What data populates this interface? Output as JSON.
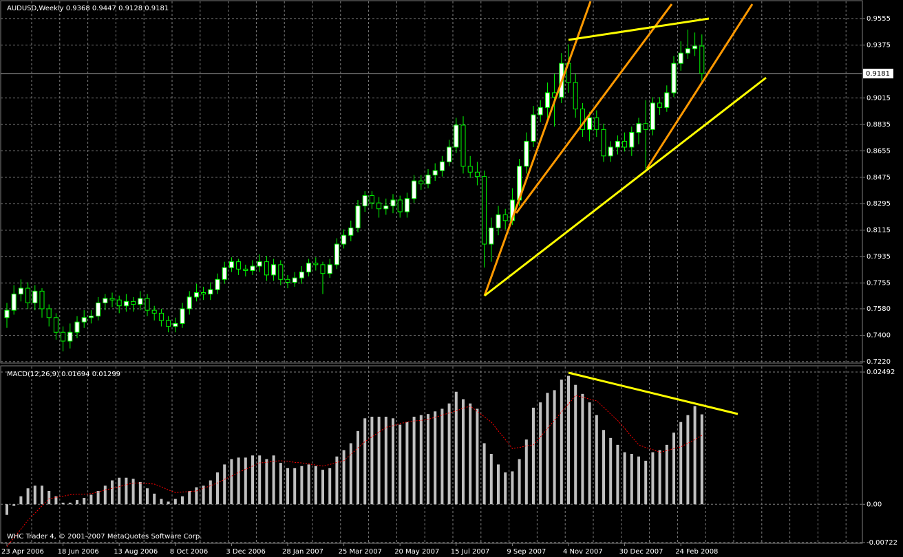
{
  "chart_data": [
    {
      "type": "candlestick",
      "title": "AUDUSD,Weekly",
      "categories": [
        "23 Apr 2006",
        null,
        null,
        null,
        null,
        null,
        null,
        null,
        "18 Jun 2006",
        null,
        null,
        null,
        null,
        null,
        null,
        null,
        "13 Aug 2006",
        null,
        null,
        null,
        null,
        null,
        null,
        null,
        "8 Oct 2006",
        null,
        null,
        null,
        null,
        null,
        null,
        null,
        "3 Dec 2006",
        null,
        null,
        null,
        null,
        null,
        null,
        null,
        "28 Jan 2007",
        null,
        null,
        null,
        null,
        null,
        null,
        null,
        "25 Mar 2007",
        null,
        null,
        null,
        null,
        null,
        null,
        null,
        "20 May 2007",
        null,
        null,
        null,
        null,
        null,
        null,
        null,
        "15 Jul 2007",
        null,
        null,
        null,
        null,
        null,
        null,
        null,
        "9 Sep 2007",
        null,
        null,
        null,
        null,
        null,
        null,
        null,
        "4 Nov 2007",
        null,
        null,
        null,
        null,
        null,
        null,
        null,
        "30 Dec 2007",
        null,
        null,
        null,
        null,
        null,
        null,
        null,
        "24 Feb 2008",
        null,
        null,
        null
      ],
      "open": [
        0.752,
        0.757,
        0.768,
        0.772,
        0.762,
        0.77,
        0.758,
        0.752,
        0.742,
        0.736,
        0.742,
        0.749,
        0.752,
        0.753,
        0.762,
        0.765,
        0.764,
        0.76,
        0.763,
        0.761,
        0.765,
        0.757,
        0.755,
        0.75,
        0.746,
        0.748,
        0.758,
        0.766,
        0.769,
        0.768,
        0.771,
        0.778,
        0.786,
        0.79,
        0.785,
        0.784,
        0.787,
        0.79,
        0.781,
        0.788,
        0.778,
        0.776,
        0.779,
        0.783,
        0.789,
        0.788,
        0.782,
        0.788,
        0.802,
        0.808,
        0.813,
        0.828,
        0.835,
        0.83,
        0.826,
        0.828,
        0.832,
        0.824,
        0.833,
        0.845,
        0.843,
        0.849,
        0.852,
        0.858,
        0.868,
        0.883,
        0.855,
        0.851,
        0.848,
        0.802,
        0.813,
        0.822,
        0.818,
        0.832,
        0.855,
        0.872,
        0.89,
        0.895,
        0.905,
        0.902,
        0.925,
        0.912,
        0.894,
        0.88,
        0.888,
        0.88,
        0.862,
        0.868,
        0.872,
        0.868,
        0.878,
        0.884,
        0.88,
        0.898,
        0.895,
        0.905,
        0.925,
        0.932,
        0.935,
        0.9368
      ],
      "high": [
        0.762,
        0.774,
        0.778,
        0.776,
        0.774,
        0.772,
        0.761,
        0.755,
        0.746,
        0.748,
        0.753,
        0.757,
        0.757,
        0.766,
        0.768,
        0.769,
        0.767,
        0.768,
        0.766,
        0.77,
        0.768,
        0.76,
        0.758,
        0.753,
        0.752,
        0.762,
        0.77,
        0.775,
        0.773,
        0.776,
        0.782,
        0.79,
        0.793,
        0.792,
        0.788,
        0.791,
        0.795,
        0.794,
        0.792,
        0.791,
        0.781,
        0.783,
        0.787,
        0.792,
        0.793,
        0.79,
        0.792,
        0.806,
        0.812,
        0.818,
        0.832,
        0.838,
        0.838,
        0.834,
        0.833,
        0.836,
        0.835,
        0.837,
        0.849,
        0.849,
        0.853,
        0.857,
        0.862,
        0.873,
        0.888,
        0.889,
        0.862,
        0.858,
        0.852,
        0.82,
        0.828,
        0.826,
        0.84,
        0.86,
        0.878,
        0.896,
        0.9,
        0.912,
        0.918,
        0.932,
        0.938,
        0.918,
        0.898,
        0.892,
        0.893,
        0.884,
        0.872,
        0.876,
        0.878,
        0.882,
        0.888,
        0.9,
        0.902,
        0.902,
        0.91,
        0.93,
        0.94,
        0.948,
        0.946,
        0.9447
      ],
      "low": [
        0.745,
        0.754,
        0.763,
        0.758,
        0.757,
        0.752,
        0.746,
        0.737,
        0.729,
        0.731,
        0.738,
        0.745,
        0.748,
        0.75,
        0.757,
        0.759,
        0.755,
        0.756,
        0.756,
        0.757,
        0.753,
        0.75,
        0.746,
        0.742,
        0.742,
        0.745,
        0.754,
        0.763,
        0.764,
        0.764,
        0.768,
        0.775,
        0.783,
        0.781,
        0.78,
        0.781,
        0.783,
        0.777,
        0.777,
        0.774,
        0.772,
        0.773,
        0.775,
        0.78,
        0.784,
        0.768,
        0.779,
        0.785,
        0.799,
        0.804,
        0.81,
        0.824,
        0.826,
        0.82,
        0.822,
        0.823,
        0.82,
        0.82,
        0.83,
        0.839,
        0.84,
        0.845,
        0.848,
        0.855,
        0.864,
        0.85,
        0.847,
        0.842,
        0.786,
        0.79,
        0.808,
        0.812,
        0.815,
        0.828,
        0.85,
        0.868,
        0.885,
        0.888,
        0.882,
        0.898,
        0.905,
        0.888,
        0.875,
        0.872,
        0.875,
        0.858,
        0.858,
        0.863,
        0.865,
        0.862,
        0.87,
        0.852,
        0.876,
        0.89,
        0.892,
        0.902,
        0.92,
        0.928,
        0.93,
        0.9128
      ],
      "close": [
        0.757,
        0.768,
        0.772,
        0.762,
        0.77,
        0.758,
        0.752,
        0.742,
        0.736,
        0.742,
        0.749,
        0.752,
        0.753,
        0.762,
        0.765,
        0.764,
        0.76,
        0.763,
        0.761,
        0.765,
        0.757,
        0.755,
        0.75,
        0.746,
        0.748,
        0.758,
        0.766,
        0.769,
        0.768,
        0.771,
        0.778,
        0.786,
        0.79,
        0.785,
        0.784,
        0.787,
        0.79,
        0.781,
        0.788,
        0.778,
        0.776,
        0.779,
        0.783,
        0.789,
        0.788,
        0.782,
        0.788,
        0.802,
        0.808,
        0.813,
        0.828,
        0.835,
        0.83,
        0.826,
        0.828,
        0.832,
        0.824,
        0.833,
        0.845,
        0.843,
        0.849,
        0.852,
        0.858,
        0.868,
        0.883,
        0.855,
        0.851,
        0.848,
        0.802,
        0.813,
        0.822,
        0.818,
        0.832,
        0.855,
        0.872,
        0.89,
        0.895,
        0.905,
        0.902,
        0.925,
        0.912,
        0.894,
        0.88,
        0.888,
        0.88,
        0.862,
        0.868,
        0.872,
        0.868,
        0.878,
        0.884,
        0.88,
        0.898,
        0.895,
        0.905,
        0.925,
        0.932,
        0.935,
        0.9368,
        0.9181
      ],
      "ylim": [
        0.7215,
        0.9672
      ],
      "yticks": [
        0.9555,
        0.9375,
        0.9015,
        0.8835,
        0.8655,
        0.8475,
        0.8295,
        0.8115,
        0.7935,
        0.7755,
        {
          "value": 0.758,
          "label": "0.7580"
        },
        {
          "value": 0.74,
          "label": "0.7400"
        },
        {
          "value": 0.722,
          "label": "0.7220"
        }
      ],
      "grid": true,
      "colors": {
        "up": "#ffffff",
        "down": "#000000",
        "wick": "#00ff00"
      }
    },
    {
      "type": "macd",
      "title": "MACD(12,26,9)",
      "histogram": [
        -0.002,
        -0.0003,
        0.0015,
        0.003,
        0.0035,
        0.0035,
        0.0025,
        0.0015,
        0.0003,
        0.0003,
        0.0008,
        0.0012,
        0.0018,
        0.0025,
        0.0035,
        0.0045,
        0.005,
        0.005,
        0.0048,
        0.0042,
        0.003,
        0.002,
        0.001,
        0.0005,
        0.001,
        0.0015,
        0.0025,
        0.0032,
        0.0035,
        0.0045,
        0.006,
        0.0075,
        0.0085,
        0.0088,
        0.0088,
        0.0092,
        0.0092,
        0.0085,
        0.0092,
        0.0078,
        0.0068,
        0.0068,
        0.0072,
        0.0075,
        0.0072,
        0.0065,
        0.0068,
        0.009,
        0.0102,
        0.0115,
        0.0138,
        0.0162,
        0.0165,
        0.0165,
        0.0165,
        0.0162,
        0.015,
        0.0155,
        0.0165,
        0.0168,
        0.017,
        0.0175,
        0.018,
        0.019,
        0.0212,
        0.0198,
        0.019,
        0.018,
        0.0115,
        0.0095,
        0.0075,
        0.006,
        0.0062,
        0.0085,
        0.0122,
        0.0182,
        0.0192,
        0.021,
        0.0215,
        0.0235,
        0.0242,
        0.0225,
        0.0208,
        0.0192,
        0.0168,
        0.014,
        0.0125,
        0.0112,
        0.0098,
        0.0095,
        0.009,
        0.0082,
        0.0098,
        0.0102,
        0.0112,
        0.0135,
        0.0155,
        0.0168,
        0.0185,
        0.01694
      ],
      "signal": [
        -0.008,
        -0.0063,
        -0.0047,
        -0.003,
        -0.0017,
        -0.0003,
        0.001,
        0.0013,
        0.0015,
        0.0018,
        0.0019,
        0.0019,
        0.002,
        0.0023,
        0.0027,
        0.003,
        0.0033,
        0.0037,
        0.004,
        0.004,
        0.0039,
        0.0038,
        0.0033,
        0.0027,
        0.0022,
        0.0023,
        0.0024,
        0.0025,
        0.003,
        0.0035,
        0.004,
        0.0047,
        0.0053,
        0.006,
        0.0066,
        0.0072,
        0.0078,
        0.0079,
        0.0081,
        0.0082,
        0.0081,
        0.0079,
        0.0078,
        0.0076,
        0.0074,
        0.0072,
        0.0075,
        0.0079,
        0.0082,
        0.0094,
        0.0106,
        0.0118,
        0.0127,
        0.0136,
        0.0145,
        0.0148,
        0.0152,
        0.0155,
        0.0157,
        0.0158,
        0.016,
        0.0164,
        0.0168,
        0.0172,
        0.0176,
        0.0181,
        0.0185,
        0.0175,
        0.0165,
        0.0155,
        0.0138,
        0.0122,
        0.0105,
        0.0107,
        0.011,
        0.0112,
        0.0127,
        0.0143,
        0.0158,
        0.0174,
        0.0189,
        0.0205,
        0.0202,
        0.0198,
        0.0195,
        0.0183,
        0.017,
        0.0158,
        0.0143,
        0.0127,
        0.0112,
        0.0107,
        0.0103,
        0.0098,
        0.0101,
        0.0105,
        0.0108,
        0.0115,
        0.0122,
        0.01299
      ],
      "ylim": [
        -0.00722,
        0.02596
      ],
      "yticks": [
        0.02492,
        {
          "value": 0,
          "label": "0.00"
        },
        -0.00722
      ],
      "colors": {
        "histogram": "#c0c0c0",
        "signal": "#ff0000"
      }
    }
  ],
  "footer": "WHC Trader 4, © 2001-2007 MetaQuotes Software Corp."
}
